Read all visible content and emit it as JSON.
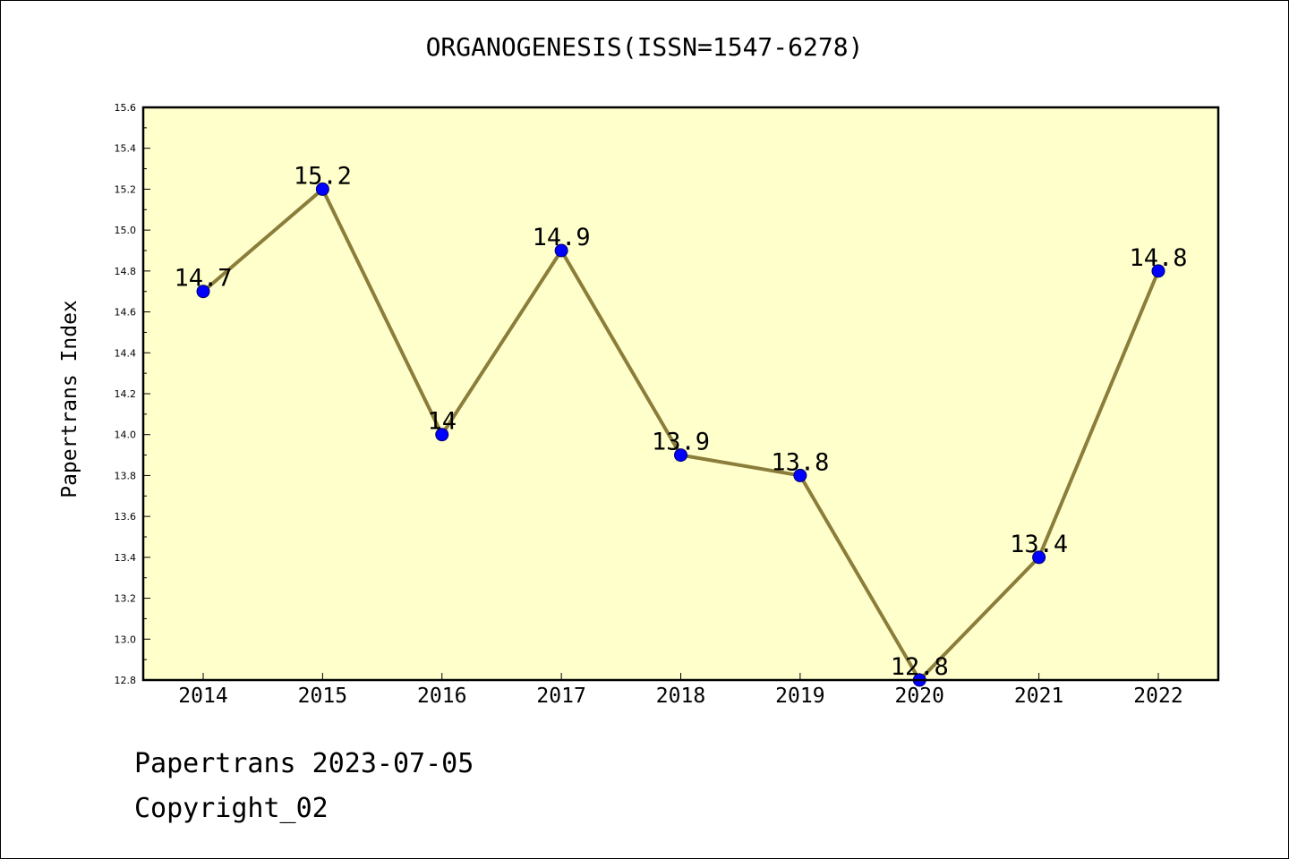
{
  "title": "ORGANOGENESIS(ISSN=1547-6278)",
  "footer": {
    "line1": "Papertrans 2023-07-05",
    "line2": "Copyright_02"
  },
  "colors": {
    "background": "#ffffcc",
    "line": "#8b7d3a",
    "marker": "#0000ff"
  },
  "chart_data": {
    "type": "line",
    "title": "ORGANOGENESIS(ISSN=1547-6278)",
    "xlabel": "",
    "ylabel": "Papertrans Index",
    "categories": [
      "2014",
      "2015",
      "2016",
      "2017",
      "2018",
      "2019",
      "2020",
      "2021",
      "2022"
    ],
    "values": [
      14.7,
      15.2,
      14.0,
      14.9,
      13.9,
      13.8,
      12.8,
      13.4,
      14.8
    ],
    "data_labels": [
      "14.7",
      "15.2",
      "14",
      "14.9",
      "13.9",
      "13.8",
      "12.8",
      "13.4",
      "14.8"
    ],
    "ylim": [
      12.8,
      15.6
    ],
    "yticks": [
      "12.8",
      "13.0",
      "13.2",
      "13.4",
      "13.6",
      "13.8",
      "14.0",
      "14.2",
      "14.4",
      "14.6",
      "14.8",
      "15.0",
      "15.2",
      "15.4",
      "15.6"
    ],
    "grid": false,
    "legend": "none"
  }
}
